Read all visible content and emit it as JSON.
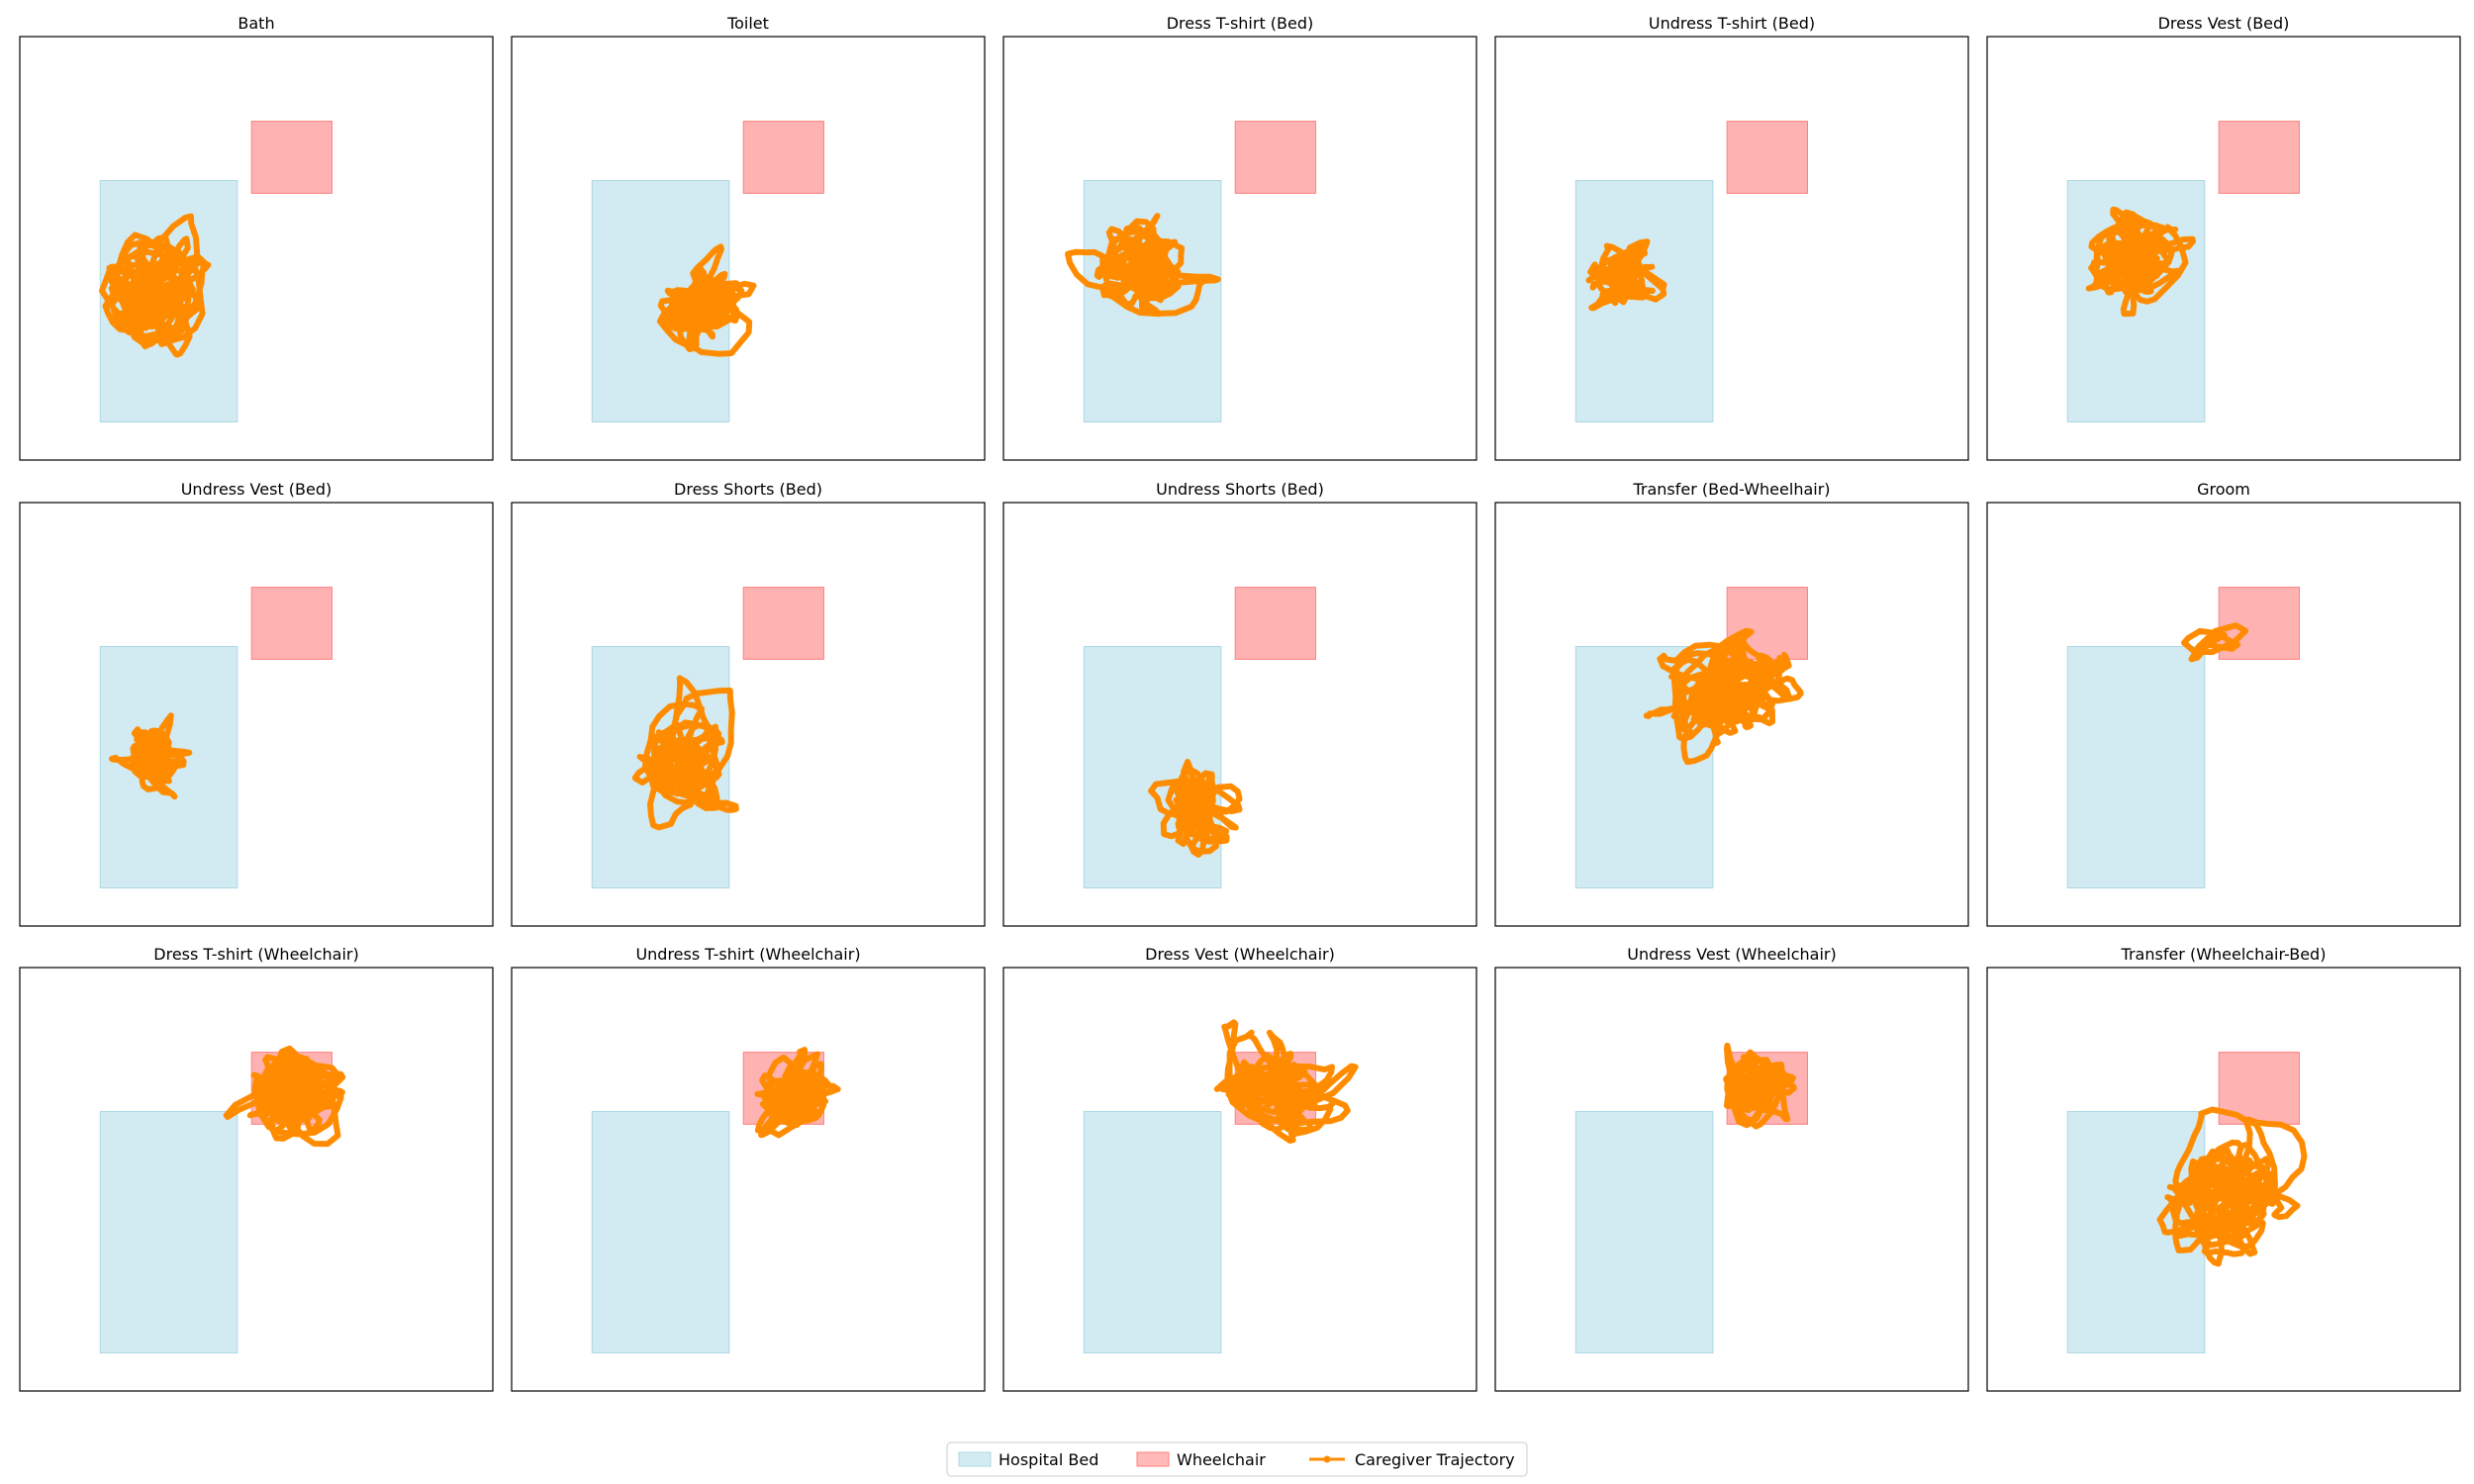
{
  "figure": {
    "legend": {
      "placement": "bottom-center",
      "entries": [
        {
          "key": "bed",
          "label": "Hospital Bed",
          "kind": "patch",
          "color": "#add8e6"
        },
        {
          "key": "wheelchair",
          "label": "Wheelchair",
          "kind": "patch",
          "color": "#ff7f7f"
        },
        {
          "key": "trajectory",
          "label": "Caregiver Trajectory",
          "kind": "line",
          "color": "#ff8c00"
        }
      ]
    },
    "colors": {
      "bed": "#add8e6",
      "wheelchair": "#ff7f7f",
      "trajectory": "#ff8c00",
      "frame": "#000000"
    }
  },
  "chart_data": [
    {
      "type": "line",
      "title": "Bath",
      "trajectory": {
        "center": [
          0.28,
          0.4
        ],
        "spread": [
          0.14,
          0.16
        ],
        "points": 520,
        "seed": 11
      }
    },
    {
      "type": "line",
      "title": "Toilet",
      "trajectory": {
        "center": [
          0.4,
          0.36
        ],
        "spread": [
          0.06,
          0.1
        ],
        "points": 360,
        "seed": 23
      }
    },
    {
      "type": "line",
      "title": "Dress T-shirt (Bed)",
      "trajectory": {
        "center": [
          0.3,
          0.45
        ],
        "spread": [
          0.12,
          0.13
        ],
        "points": 380,
        "seed": 37
      }
    },
    {
      "type": "line",
      "title": "Undress T-shirt (Bed)",
      "trajectory": {
        "center": [
          0.27,
          0.44
        ],
        "spread": [
          0.07,
          0.09
        ],
        "points": 260,
        "seed": 41
      }
    },
    {
      "type": "line",
      "title": "Dress Vest (Bed)",
      "trajectory": {
        "center": [
          0.3,
          0.48
        ],
        "spread": [
          0.12,
          0.12
        ],
        "points": 380,
        "seed": 53
      }
    },
    {
      "type": "line",
      "title": "Undress Vest (Bed)",
      "trajectory": {
        "center": [
          0.28,
          0.4
        ],
        "spread": [
          0.06,
          0.08
        ],
        "points": 240,
        "seed": 61
      }
    },
    {
      "type": "line",
      "title": "Dress Shorts (Bed)",
      "trajectory": {
        "center": [
          0.36,
          0.4
        ],
        "spread": [
          0.12,
          0.18
        ],
        "points": 380,
        "seed": 71
      }
    },
    {
      "type": "line",
      "title": "Undress Shorts (Bed)",
      "trajectory": {
        "center": [
          0.4,
          0.28
        ],
        "spread": [
          0.1,
          0.1
        ],
        "points": 300,
        "seed": 83
      }
    },
    {
      "type": "line",
      "title": "Transfer (Bed-Wheelhair)",
      "trajectory": {
        "center": [
          0.5,
          0.55
        ],
        "spread": [
          0.24,
          0.25
        ],
        "points": 620,
        "seed": 97
      }
    },
    {
      "type": "line",
      "title": "Groom",
      "trajectory": {
        "center": [
          0.48,
          0.67
        ],
        "spread": [
          0.03,
          0.02
        ],
        "points": 24,
        "seed": 101
      }
    },
    {
      "type": "line",
      "title": "Dress T-shirt (Wheelchair)",
      "trajectory": {
        "center": [
          0.58,
          0.7
        ],
        "spread": [
          0.11,
          0.1
        ],
        "points": 420,
        "seed": 113
      }
    },
    {
      "type": "line",
      "title": "Undress T-shirt (Wheelchair)",
      "trajectory": {
        "center": [
          0.6,
          0.7
        ],
        "spread": [
          0.07,
          0.1
        ],
        "points": 360,
        "seed": 127
      }
    },
    {
      "type": "line",
      "title": "Dress Vest (Wheelchair)",
      "trajectory": {
        "center": [
          0.57,
          0.72
        ],
        "spread": [
          0.14,
          0.14
        ],
        "points": 380,
        "seed": 131
      }
    },
    {
      "type": "line",
      "title": "Undress Vest (Wheelchair)",
      "trajectory": {
        "center": [
          0.55,
          0.72
        ],
        "spread": [
          0.08,
          0.09
        ],
        "points": 300,
        "seed": 139
      }
    },
    {
      "type": "line",
      "title": "Transfer (Wheelchair-Bed)",
      "trajectory": {
        "center": [
          0.5,
          0.45
        ],
        "spread": [
          0.2,
          0.26
        ],
        "points": 600,
        "seed": 149
      }
    }
  ]
}
